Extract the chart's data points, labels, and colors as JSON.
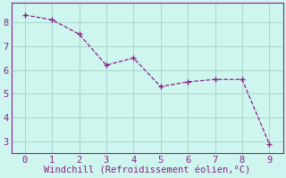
{
  "x": [
    0,
    1,
    2,
    3,
    4,
    5,
    6,
    7,
    8,
    9
  ],
  "y": [
    8.3,
    8.1,
    7.5,
    6.2,
    6.5,
    5.3,
    5.5,
    5.6,
    5.6,
    2.9
  ],
  "line_color": "#882288",
  "marker": "+",
  "marker_size": 4,
  "xlabel": "Windchill (Refroidissement éolien,°C)",
  "xlabel_color": "#882288",
  "xlabel_fontsize": 7.5,
  "background_color": "#cef5ee",
  "grid_color": "#aad4cc",
  "tick_color": "#882288",
  "tick_fontsize": 7.5,
  "ylim": [
    2.5,
    8.8
  ],
  "xlim": [
    -0.5,
    9.5
  ],
  "yticks": [
    3,
    4,
    5,
    6,
    7,
    8
  ],
  "xticks": [
    0,
    1,
    2,
    3,
    4,
    5,
    6,
    7,
    8,
    9
  ]
}
